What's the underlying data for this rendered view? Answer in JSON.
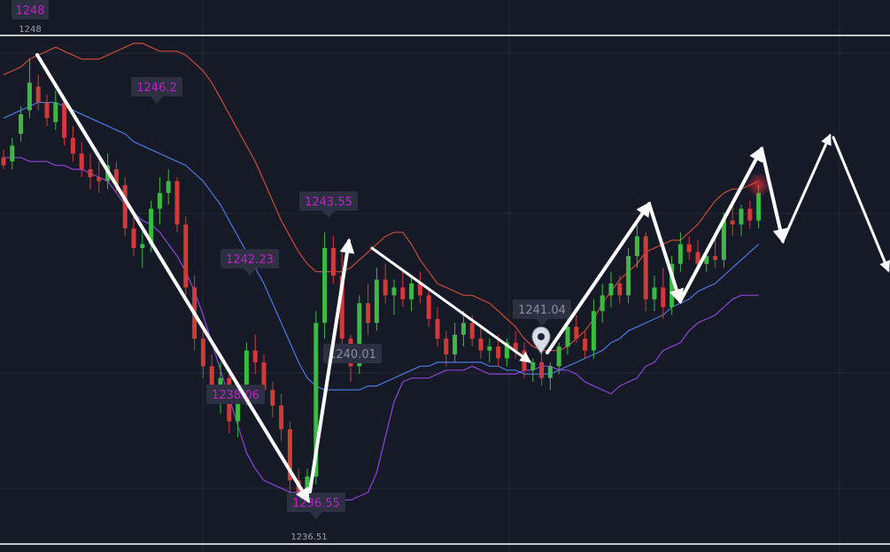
{
  "chart_data": {
    "type": "candlestick",
    "instrument_scale": {
      "ymin": 1236.0,
      "ymax": 1248.6
    },
    "horizontal_levels": [
      {
        "label": "1248",
        "value": 1248.0
      },
      {
        "label": "1236.51",
        "value": 1236.51
      }
    ],
    "price_markers": [
      {
        "label": "1248",
        "x_index": 3,
        "value": 1248.0,
        "style": "magenta",
        "pointer": "none"
      },
      {
        "label": "1246.2",
        "x_index": 18,
        "value": 1246.2,
        "style": "magenta",
        "pointer": "down"
      },
      {
        "label": "1243.55",
        "x_index": 38,
        "value": 1243.55,
        "style": "magenta",
        "pointer": "down"
      },
      {
        "label": "1242.23",
        "x_index": 28,
        "value": 1242.23,
        "style": "magenta",
        "pointer": "down"
      },
      {
        "label": "1240.01",
        "x_index": 40,
        "value": 1240.01,
        "style": "grey",
        "pointer": "none"
      },
      {
        "label": "1238.06",
        "x_index": 26,
        "value": 1238.06,
        "style": "magenta",
        "pointer": "none"
      },
      {
        "label": "1236.55",
        "x_index": 35,
        "value": 1236.55,
        "style": "magenta",
        "pointer": "down"
      },
      {
        "label": "1241.04",
        "x_index": 62,
        "value": 1241.04,
        "style": "grey",
        "pointer": "down"
      }
    ],
    "candles": [
      [
        1245.5,
        1245.7,
        1245.2,
        1245.3
      ],
      [
        1245.4,
        1246.0,
        1245.2,
        1245.8
      ],
      [
        1246.1,
        1246.8,
        1245.9,
        1246.6
      ],
      [
        1246.7,
        1248.0,
        1246.5,
        1247.4
      ],
      [
        1247.3,
        1247.6,
        1246.7,
        1246.9
      ],
      [
        1246.9,
        1247.1,
        1246.3,
        1246.5
      ],
      [
        1246.4,
        1247.2,
        1246.2,
        1246.9
      ],
      [
        1246.9,
        1247.0,
        1245.8,
        1246.0
      ],
      [
        1246.0,
        1246.3,
        1245.4,
        1245.6
      ],
      [
        1245.6,
        1245.9,
        1245.0,
        1245.2
      ],
      [
        1245.2,
        1245.6,
        1244.7,
        1245.0
      ],
      [
        1245.0,
        1245.4,
        1244.6,
        1244.9
      ],
      [
        1244.9,
        1245.6,
        1244.7,
        1245.3
      ],
      [
        1245.2,
        1245.4,
        1244.6,
        1244.8
      ],
      [
        1244.8,
        1245.0,
        1243.5,
        1243.7
      ],
      [
        1243.7,
        1244.0,
        1243.0,
        1243.2
      ],
      [
        1243.2,
        1243.6,
        1242.7,
        1243.3
      ],
      [
        1243.3,
        1244.4,
        1243.1,
        1244.2
      ],
      [
        1244.2,
        1245.0,
        1243.8,
        1244.6
      ],
      [
        1244.6,
        1245.2,
        1244.3,
        1244.9
      ],
      [
        1244.9,
        1245.0,
        1243.6,
        1243.8
      ],
      [
        1243.8,
        1244.0,
        1242.0,
        1242.2
      ],
      [
        1242.2,
        1242.5,
        1240.6,
        1240.9
      ],
      [
        1240.9,
        1241.1,
        1239.9,
        1240.2
      ],
      [
        1240.2,
        1240.5,
        1239.4,
        1239.7
      ],
      [
        1239.7,
        1240.3,
        1239.0,
        1239.9
      ],
      [
        1239.9,
        1240.0,
        1238.5,
        1238.8
      ],
      [
        1238.8,
        1239.6,
        1238.4,
        1239.4
      ],
      [
        1239.4,
        1240.8,
        1239.2,
        1240.6
      ],
      [
        1240.6,
        1241.0,
        1240.0,
        1240.3
      ],
      [
        1240.3,
        1240.5,
        1239.4,
        1239.6
      ],
      [
        1239.6,
        1239.8,
        1238.9,
        1239.2
      ],
      [
        1239.2,
        1239.5,
        1238.3,
        1238.6
      ],
      [
        1238.6,
        1238.8,
        1237.0,
        1237.3
      ],
      [
        1237.3,
        1237.6,
        1236.6,
        1237.0
      ],
      [
        1237.0,
        1237.6,
        1236.5,
        1237.4
      ],
      [
        1237.4,
        1241.6,
        1237.2,
        1241.3
      ],
      [
        1241.3,
        1243.6,
        1240.9,
        1243.2
      ],
      [
        1243.2,
        1243.5,
        1242.3,
        1242.5
      ],
      [
        1242.5,
        1243.1,
        1240.6,
        1240.9
      ],
      [
        1240.9,
        1241.0,
        1239.8,
        1240.2
      ],
      [
        1240.2,
        1242.0,
        1240.0,
        1241.8
      ],
      [
        1241.8,
        1242.3,
        1241.0,
        1241.3
      ],
      [
        1241.3,
        1242.7,
        1241.1,
        1242.4
      ],
      [
        1242.4,
        1242.8,
        1241.8,
        1242.0
      ],
      [
        1242.0,
        1242.4,
        1241.5,
        1242.2
      ],
      [
        1242.2,
        1242.6,
        1241.7,
        1241.9
      ],
      [
        1241.9,
        1242.5,
        1241.6,
        1242.3
      ],
      [
        1242.3,
        1242.6,
        1241.8,
        1242.0
      ],
      [
        1242.0,
        1242.2,
        1241.2,
        1241.4
      ],
      [
        1241.4,
        1241.7,
        1240.7,
        1240.9
      ],
      [
        1240.9,
        1241.1,
        1240.2,
        1240.5
      ],
      [
        1240.5,
        1241.3,
        1240.3,
        1241.0
      ],
      [
        1241.0,
        1241.6,
        1240.7,
        1241.3
      ],
      [
        1241.3,
        1241.5,
        1240.7,
        1240.9
      ],
      [
        1240.9,
        1241.2,
        1240.4,
        1240.6
      ],
      [
        1240.6,
        1240.9,
        1240.3,
        1240.7
      ],
      [
        1240.7,
        1241.0,
        1240.2,
        1240.4
      ],
      [
        1240.4,
        1240.9,
        1240.2,
        1240.8
      ],
      [
        1240.8,
        1241.1,
        1240.4,
        1240.6
      ],
      [
        1240.6,
        1240.8,
        1239.9,
        1240.1
      ],
      [
        1240.1,
        1240.4,
        1239.8,
        1240.3
      ],
      [
        1240.3,
        1240.6,
        1239.7,
        1239.9
      ],
      [
        1239.9,
        1240.3,
        1239.6,
        1240.2
      ],
      [
        1240.2,
        1240.8,
        1240.0,
        1240.7
      ],
      [
        1240.7,
        1241.4,
        1240.5,
        1241.2
      ],
      [
        1241.2,
        1241.5,
        1240.8,
        1240.9
      ],
      [
        1240.9,
        1241.1,
        1240.4,
        1240.6
      ],
      [
        1240.6,
        1241.9,
        1240.4,
        1241.6
      ],
      [
        1241.6,
        1242.3,
        1241.3,
        1242.0
      ],
      [
        1242.0,
        1242.6,
        1241.7,
        1242.3
      ],
      [
        1242.3,
        1242.5,
        1241.8,
        1242.0
      ],
      [
        1242.0,
        1243.2,
        1241.8,
        1243.0
      ],
      [
        1243.0,
        1243.8,
        1242.7,
        1243.5
      ],
      [
        1243.5,
        1243.6,
        1241.6,
        1241.9
      ],
      [
        1241.9,
        1242.5,
        1241.6,
        1242.2
      ],
      [
        1242.2,
        1242.7,
        1241.4,
        1241.7
      ],
      [
        1241.7,
        1243.0,
        1241.5,
        1242.8
      ],
      [
        1242.8,
        1243.6,
        1242.6,
        1243.3
      ],
      [
        1243.3,
        1243.5,
        1242.9,
        1243.1
      ],
      [
        1243.1,
        1243.4,
        1242.6,
        1242.8
      ],
      [
        1242.8,
        1243.2,
        1242.6,
        1243.0
      ],
      [
        1243.0,
        1243.5,
        1242.7,
        1242.9
      ],
      [
        1242.9,
        1244.1,
        1242.7,
        1243.9
      ],
      [
        1243.9,
        1244.3,
        1243.5,
        1243.8
      ],
      [
        1243.8,
        1244.3,
        1243.5,
        1244.2
      ],
      [
        1244.2,
        1244.4,
        1243.7,
        1243.9
      ],
      [
        1243.9,
        1244.8,
        1243.7,
        1244.6
      ]
    ],
    "bollinger": {
      "upper": [
        1247.6,
        1247.7,
        1247.8,
        1248.0,
        1248.1,
        1248.2,
        1248.3,
        1248.2,
        1248.1,
        1248.0,
        1248.0,
        1248.0,
        1248.1,
        1248.2,
        1248.3,
        1248.4,
        1248.4,
        1248.3,
        1248.2,
        1248.2,
        1248.2,
        1248.1,
        1247.9,
        1247.7,
        1247.4,
        1247.0,
        1246.6,
        1246.2,
        1245.8,
        1245.4,
        1244.9,
        1244.4,
        1243.9,
        1243.5,
        1243.1,
        1242.8,
        1242.6,
        1242.6,
        1242.6,
        1242.6,
        1242.7,
        1242.9,
        1243.1,
        1243.3,
        1243.5,
        1243.6,
        1243.6,
        1243.3,
        1242.9,
        1242.6,
        1242.3,
        1242.2,
        1242.1,
        1242.0,
        1242.0,
        1241.9,
        1241.8,
        1241.6,
        1241.4,
        1241.2,
        1240.9,
        1240.7,
        1240.6,
        1240.6,
        1240.6,
        1240.7,
        1240.9,
        1241.1,
        1241.4,
        1241.8,
        1242.1,
        1242.4,
        1242.6,
        1242.8,
        1243.1,
        1243.2,
        1243.3,
        1243.4,
        1243.4,
        1243.6,
        1243.8,
        1244.1,
        1244.4,
        1244.6,
        1244.7,
        1244.7,
        1244.8,
        1244.9
      ],
      "middle": [
        1246.5,
        1246.6,
        1246.7,
        1246.8,
        1246.9,
        1246.9,
        1246.9,
        1246.8,
        1246.7,
        1246.6,
        1246.5,
        1246.4,
        1246.3,
        1246.2,
        1246.1,
        1245.9,
        1245.8,
        1245.7,
        1245.6,
        1245.5,
        1245.4,
        1245.3,
        1245.1,
        1244.9,
        1244.6,
        1244.3,
        1243.9,
        1243.5,
        1243.1,
        1242.7,
        1242.3,
        1241.8,
        1241.3,
        1240.8,
        1240.3,
        1239.9,
        1239.7,
        1239.6,
        1239.6,
        1239.6,
        1239.6,
        1239.6,
        1239.7,
        1239.7,
        1239.8,
        1239.9,
        1240.0,
        1240.1,
        1240.2,
        1240.2,
        1240.3,
        1240.3,
        1240.3,
        1240.3,
        1240.3,
        1240.3,
        1240.2,
        1240.2,
        1240.1,
        1240.1,
        1240.0,
        1240.0,
        1240.0,
        1240.0,
        1240.1,
        1240.2,
        1240.3,
        1240.4,
        1240.5,
        1240.6,
        1240.8,
        1240.9,
        1241.1,
        1241.2,
        1241.3,
        1241.4,
        1241.5,
        1241.7,
        1241.8,
        1241.9,
        1242.1,
        1242.2,
        1242.3,
        1242.5,
        1242.7,
        1242.9,
        1243.1,
        1243.3
      ],
      "lower": [
        1245.5,
        1245.5,
        1245.5,
        1245.4,
        1245.4,
        1245.4,
        1245.3,
        1245.3,
        1245.2,
        1245.2,
        1245.1,
        1245.0,
        1244.9,
        1244.6,
        1244.3,
        1244.1,
        1243.9,
        1243.8,
        1243.6,
        1243.3,
        1243.0,
        1242.6,
        1242.1,
        1241.5,
        1240.8,
        1240.1,
        1239.4,
        1238.7,
        1238.0,
        1237.6,
        1237.3,
        1237.2,
        1237.1,
        1237.0,
        1237.0,
        1236.9,
        1236.9,
        1236.9,
        1236.8,
        1236.8,
        1236.8,
        1236.9,
        1237.0,
        1237.5,
        1238.4,
        1239.3,
        1239.8,
        1239.9,
        1239.9,
        1239.9,
        1240.0,
        1240.1,
        1240.1,
        1240.1,
        1240.2,
        1240.1,
        1240.0,
        1240.0,
        1240.0,
        1240.0,
        1240.1,
        1240.1,
        1240.2,
        1240.2,
        1240.1,
        1240.1,
        1240.0,
        1239.8,
        1239.7,
        1239.6,
        1239.5,
        1239.7,
        1239.8,
        1239.9,
        1240.2,
        1240.3,
        1240.6,
        1240.7,
        1240.8,
        1241.1,
        1241.3,
        1241.4,
        1241.5,
        1241.7,
        1241.9,
        1242.0,
        1242.0,
        1242.0
      ]
    },
    "colors": {
      "background": "#161a27",
      "grid": "#262b3a",
      "up": "#3cb844",
      "down": "#d23a3a",
      "upper_band": "#c84a38",
      "middle_band": "#4a78e0",
      "lower_band": "#8a45d8",
      "marker_text": "#c020c8",
      "marker_box": "#2c3040",
      "level_line": "#ffffff",
      "arrow": "#ffffff"
    },
    "icons": [
      "location-pin-icon"
    ],
    "annotations": "freehand white zigzag arrows sketching a projected price path",
    "grid": true
  }
}
